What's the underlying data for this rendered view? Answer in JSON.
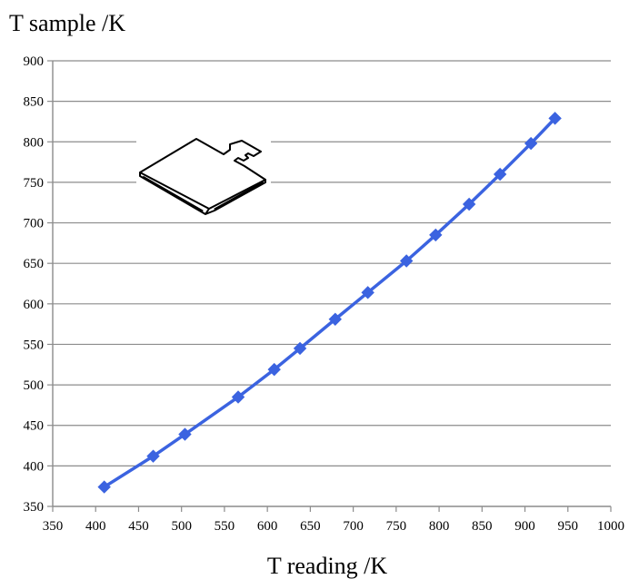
{
  "chart_data": {
    "type": "line",
    "xlabel": "T reading /K",
    "ylabel": "T sample /K",
    "xlim": [
      350,
      1000
    ],
    "ylim": [
      350,
      900
    ],
    "xticks": [
      "350",
      "400",
      "450",
      "500",
      "550",
      "600",
      "650",
      "700",
      "750",
      "800",
      "850",
      "900",
      "950",
      "1000"
    ],
    "yticks": [
      "350",
      "400",
      "450",
      "500",
      "550",
      "600",
      "650",
      "700",
      "750",
      "800",
      "850",
      "900"
    ],
    "grid": "horizontal",
    "series": [
      {
        "color": "#3b63e0",
        "marker": "diamond",
        "x": [
          410,
          467,
          504,
          566,
          608,
          638,
          679,
          717,
          762,
          796,
          835,
          871,
          907,
          935
        ],
        "y": [
          374,
          412,
          439,
          485,
          519,
          545,
          581,
          614,
          653,
          685,
          723,
          760,
          798,
          829
        ]
      }
    ],
    "inset_icon": "sample-plate-icon"
  }
}
